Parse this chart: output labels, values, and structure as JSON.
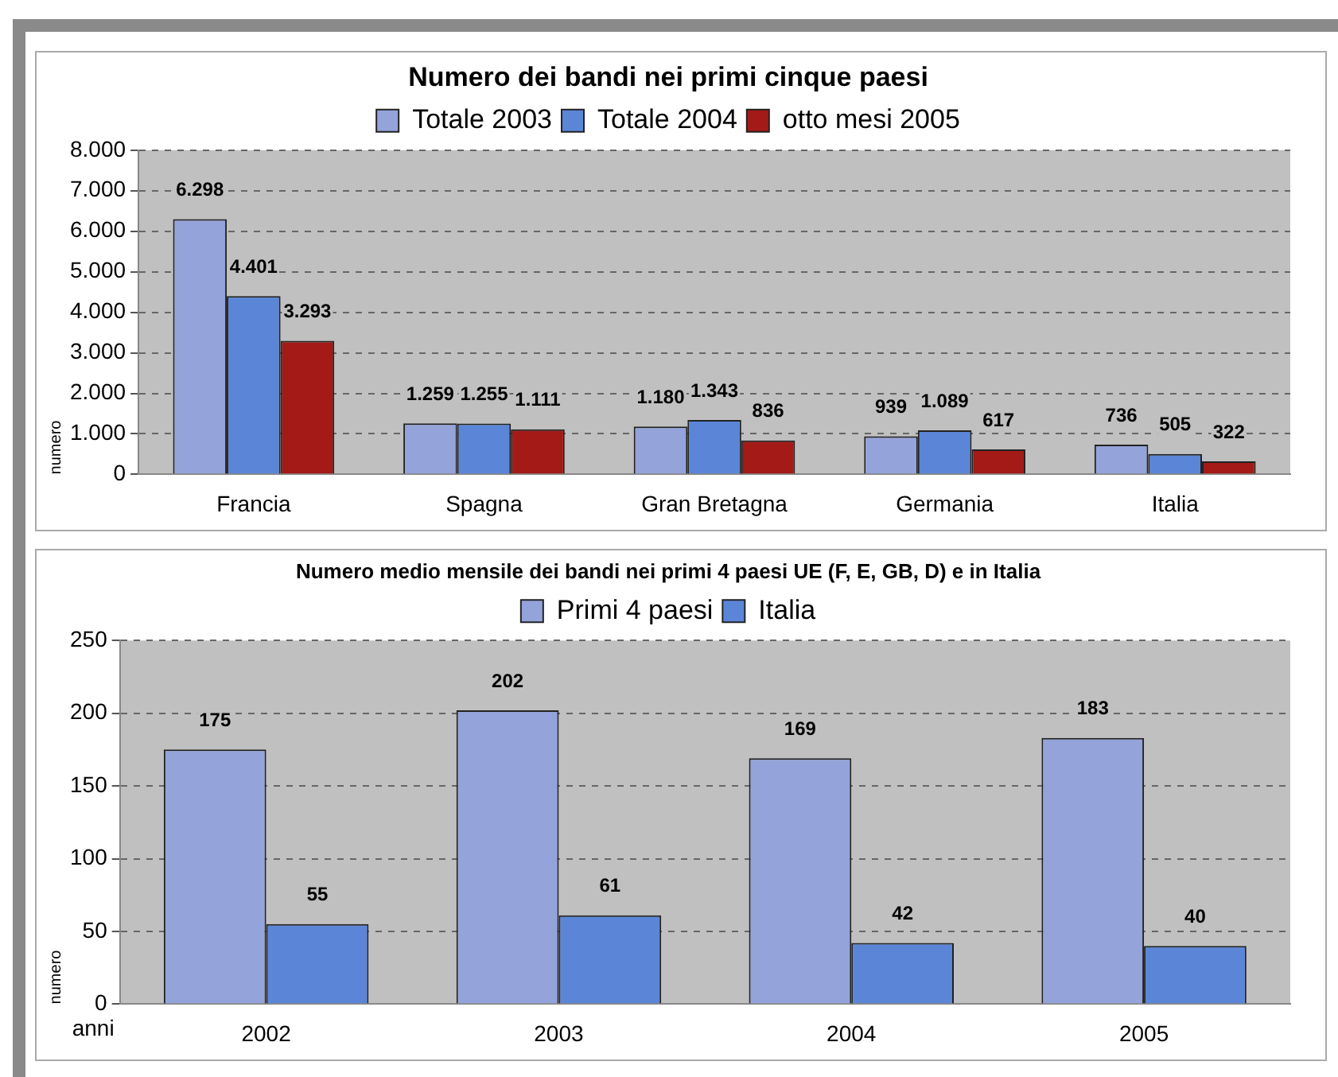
{
  "chart_data": [
    {
      "type": "bar",
      "title": "Numero dei bandi nei primi cinque paesi",
      "ylabel": "numero",
      "categories": [
        "Francia",
        "Spagna",
        "Gran Bretagna",
        "Germania",
        "Italia"
      ],
      "series": [
        {
          "name": "Totale 2003",
          "color": "#94a3d9",
          "values": [
            6298,
            1259,
            1180,
            939,
            736
          ],
          "value_labels": [
            "6.298",
            "1.259",
            "1.180",
            "939",
            "736"
          ]
        },
        {
          "name": "Totale 2004",
          "color": "#5b86d8",
          "values": [
            4401,
            1255,
            1343,
            1089,
            505
          ],
          "value_labels": [
            "4.401",
            "1.255",
            "1.343",
            "1.089",
            "505"
          ]
        },
        {
          "name": "otto mesi 2005",
          "color": "#a31a16",
          "values": [
            3293,
            1111,
            836,
            617,
            322
          ],
          "value_labels": [
            "3.293",
            "1.111",
            "836",
            "617",
            "322"
          ]
        }
      ],
      "ylim": [
        0,
        8000
      ],
      "yticks": [
        0,
        {
          "value": 1000,
          "label": "1.000"
        },
        {
          "value": 2000,
          "label": "2.000"
        },
        {
          "value": 3000,
          "label": "3.000"
        },
        {
          "value": 4000,
          "label": "4.000"
        },
        {
          "value": 5000,
          "label": "5.000"
        },
        {
          "value": 6000,
          "label": "6.000"
        },
        {
          "value": 7000,
          "label": "7.000"
        },
        {
          "value": 8000,
          "label": "8.000"
        }
      ],
      "grid": "y",
      "legend": "top"
    },
    {
      "type": "bar",
      "title": "Numero medio mensile dei bandi nei primi 4 paesi UE (F, E, GB, D) e in Italia",
      "xlabel": "anni",
      "ylabel": "numero",
      "categories": [
        "2002",
        "2003",
        "2004",
        "2005"
      ],
      "series": [
        {
          "name": "Primi 4 paesi",
          "color": "#94a3d9",
          "values": [
            175,
            202,
            169,
            183
          ]
        },
        {
          "name": "Italia",
          "color": "#5b86d8",
          "values": [
            55,
            61,
            42,
            40
          ]
        }
      ],
      "ylim": [
        0,
        250
      ],
      "yticks": [
        0,
        50,
        100,
        150,
        200,
        250
      ],
      "data_labels": true,
      "grid": "y",
      "legend": "top"
    }
  ]
}
